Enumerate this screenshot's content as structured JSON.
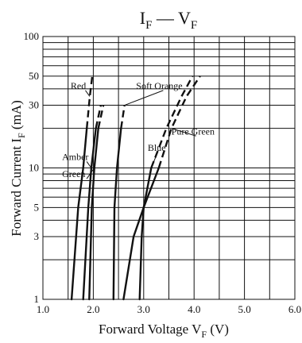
{
  "chart_data": {
    "type": "line",
    "title": {
      "base": "I",
      "sub1": "F",
      "sep": " — ",
      "base2": "V",
      "sub2": "F"
    },
    "xlabel": {
      "text": "Forward Voltage  V",
      "sub": "F",
      "unit": " (V)"
    },
    "ylabel": {
      "text": "Forward Current  I",
      "sub": "F",
      "unit": " (mA)"
    },
    "xlim": [
      1.0,
      6.0
    ],
    "ylim": [
      1,
      100
    ],
    "yscale": "log",
    "grid": true,
    "x_ticks": [
      "1.0",
      "2.0",
      "3.0",
      "4.0",
      "5.0",
      "6.0"
    ],
    "x_tick_values": [
      1.0,
      2.0,
      3.0,
      4.0,
      5.0,
      6.0
    ],
    "x_minor_grid": [
      1.5,
      2.5,
      3.5,
      4.5,
      5.5
    ],
    "y_ticks": [
      "1",
      "3",
      "5",
      "10",
      "30",
      "50",
      "100"
    ],
    "y_tick_values": [
      1,
      3,
      5,
      10,
      30,
      50,
      100
    ],
    "y_grid": [
      1,
      2,
      3,
      4,
      5,
      6,
      7,
      8,
      9,
      10,
      20,
      30,
      40,
      50,
      60,
      70,
      80,
      90,
      100
    ],
    "series": [
      {
        "name": "Red",
        "points": [
          [
            1.57,
            1
          ],
          [
            1.7,
            5
          ],
          [
            1.8,
            10
          ],
          [
            1.87,
            20
          ],
          [
            1.93,
            35
          ],
          [
            1.98,
            50
          ]
        ],
        "solid_until": 20,
        "label_at": [
          1.55,
          40
        ]
      },
      {
        "name": "Amber",
        "points": [
          [
            1.8,
            1
          ],
          [
            1.9,
            5
          ],
          [
            1.96,
            10
          ],
          [
            2.05,
            20
          ],
          [
            2.15,
            30
          ]
        ],
        "solid_until": 20,
        "label_at": [
          1.38,
          11.5
        ]
      },
      {
        "name": "Green",
        "points": [
          [
            1.92,
            1
          ],
          [
            1.97,
            5
          ],
          [
            2.02,
            10
          ],
          [
            2.1,
            20
          ],
          [
            2.2,
            30
          ]
        ],
        "solid_until": 20,
        "label_at": [
          1.38,
          8.5
        ]
      },
      {
        "name": "Soft Orange",
        "points": [
          [
            2.4,
            1
          ],
          [
            2.42,
            5
          ],
          [
            2.47,
            10
          ],
          [
            2.55,
            20
          ],
          [
            2.62,
            30
          ]
        ],
        "solid_until": 20,
        "label_at": [
          2.85,
          40
        ]
      },
      {
        "name": "Blue",
        "points": [
          [
            2.92,
            1
          ],
          [
            2.96,
            3
          ],
          [
            3.0,
            5
          ],
          [
            3.15,
            10
          ],
          [
            3.45,
            20
          ],
          [
            3.75,
            35
          ],
          [
            3.97,
            50
          ]
        ],
        "solid_until": 10,
        "label_at": [
          3.08,
          13.5
        ]
      },
      {
        "name": "Pure Green",
        "points": [
          [
            2.6,
            1
          ],
          [
            2.8,
            3
          ],
          [
            3.0,
            5
          ],
          [
            3.3,
            10
          ],
          [
            3.55,
            20
          ],
          [
            3.85,
            35
          ],
          [
            4.12,
            50
          ]
        ],
        "solid_until": 10,
        "label_at": [
          3.55,
          18
        ]
      }
    ]
  }
}
